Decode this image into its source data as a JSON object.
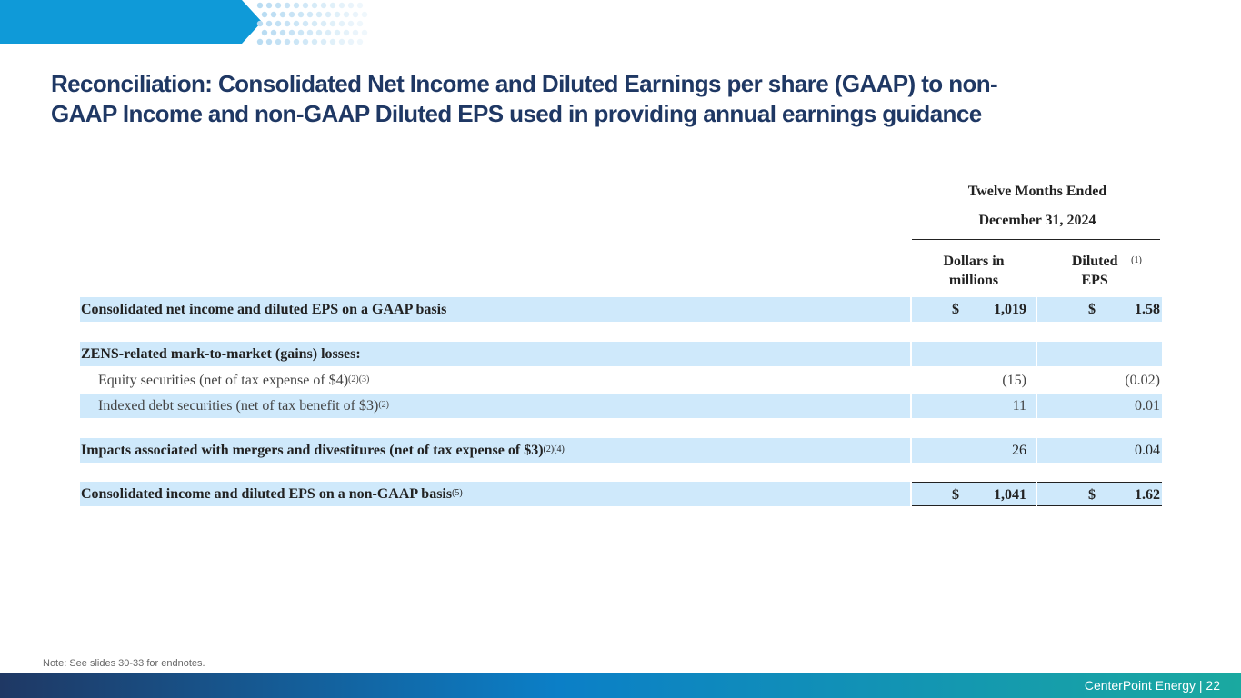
{
  "title": "Reconciliation: Consolidated Net Income and Diluted Earnings per share (GAAP) to non-GAAP Income and non-GAAP Diluted EPS used in providing annual earnings guidance",
  "table": {
    "period_line1": "Twelve Months Ended",
    "period_line2": "December 31, 2024",
    "col1_header": "Dollars in millions",
    "col2_header": "Diluted EPS",
    "col2_header_note": "(1)",
    "rows": [
      {
        "label": "Consolidated net income and diluted EPS on a GAAP basis",
        "note": "",
        "currency": "$",
        "dollars": "1,019",
        "eps": "1.58"
      },
      {
        "label": "ZENS-related mark-to-market (gains) losses:",
        "note": "",
        "currency": "",
        "dollars": "",
        "eps": ""
      },
      {
        "label": "Equity securities (net of tax expense of $4)",
        "note": "(2)(3)",
        "currency": "",
        "dollars": "(15)",
        "eps": "(0.02)"
      },
      {
        "label": "Indexed debt securities (net of tax benefit of $3)",
        "note": "(2)",
        "currency": "",
        "dollars": "11",
        "eps": "0.01"
      },
      {
        "label": "Impacts associated with mergers and divestitures (net of tax expense of $3)",
        "note": "(2)(4)",
        "currency": "",
        "dollars": "26",
        "eps": "0.04"
      },
      {
        "label": "Consolidated income and diluted EPS on a non-GAAP basis",
        "note": "(5)",
        "currency": "$",
        "dollars": "1,041",
        "eps": "1.62"
      }
    ]
  },
  "note": "Note: See slides 30-33 for endnotes.",
  "footer": "CenterPoint Energy | 22",
  "colors": {
    "title": "#1f3864",
    "banner": "#0f9ad8",
    "row_shade": "#cfe9fb",
    "dots": "#b9dcf2"
  }
}
